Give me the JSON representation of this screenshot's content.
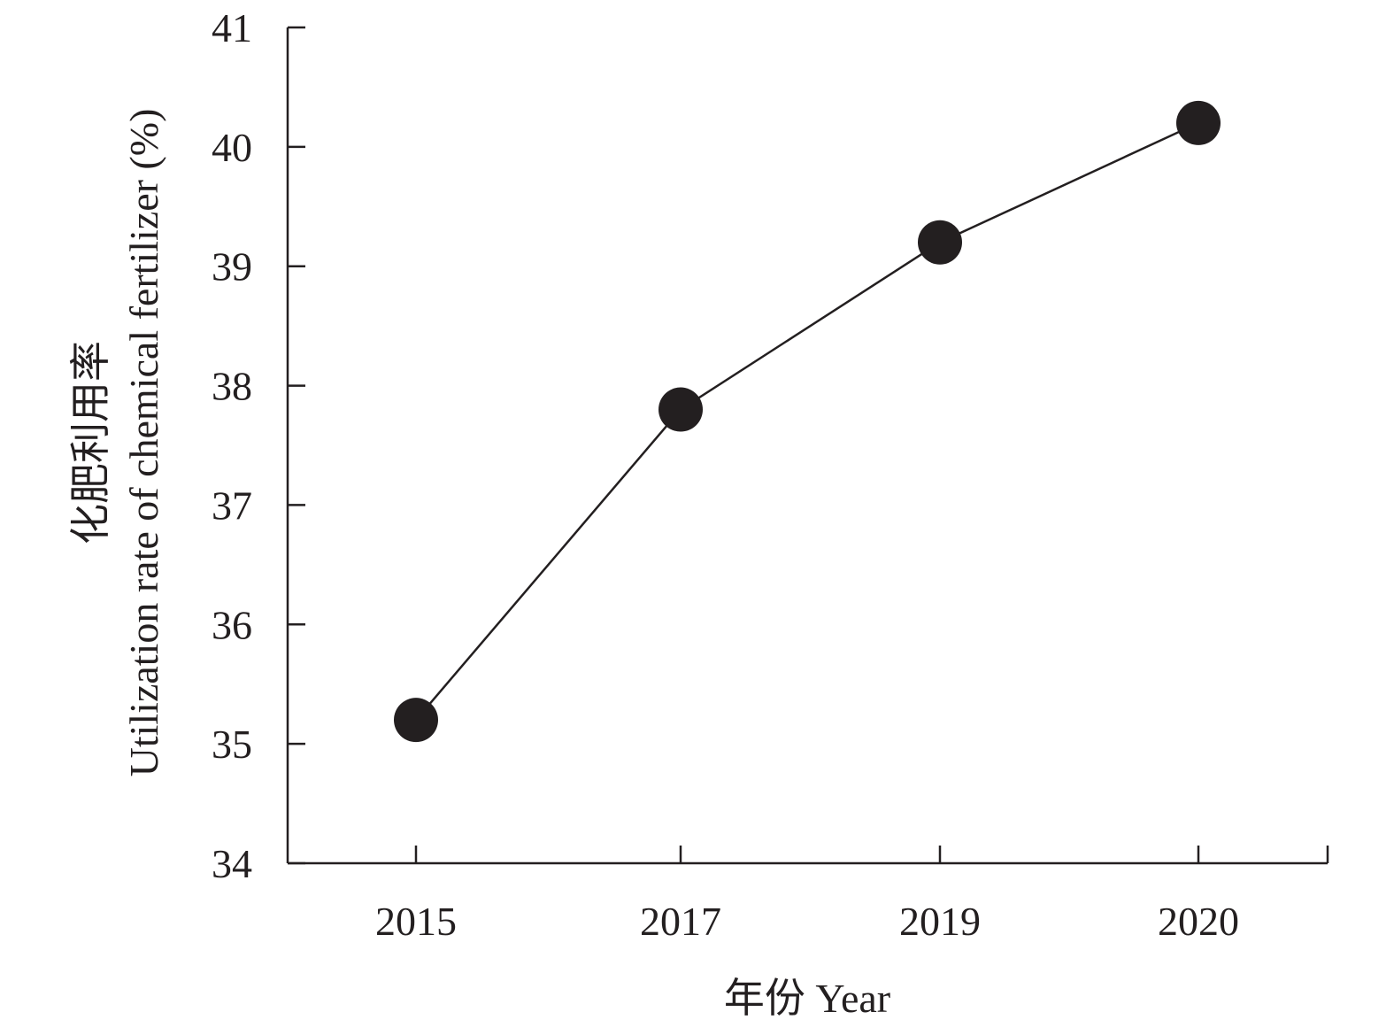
{
  "chart_data": {
    "type": "line",
    "categories": [
      "2015",
      "2017",
      "2019",
      "2020"
    ],
    "series": [
      {
        "values": [
          35.2,
          37.8,
          39.2,
          40.2
        ]
      }
    ],
    "xlabel": "年份 Year",
    "ylabel_line1": "化肥利用率",
    "ylabel_line2": "Utilization rate of chemical fertilizer (%)",
    "ylim": [
      34,
      41
    ],
    "yticks": [
      34,
      35,
      36,
      37,
      38,
      39,
      40,
      41
    ],
    "grid": false,
    "line_color": "#231f20",
    "marker_color": "#231f20"
  }
}
